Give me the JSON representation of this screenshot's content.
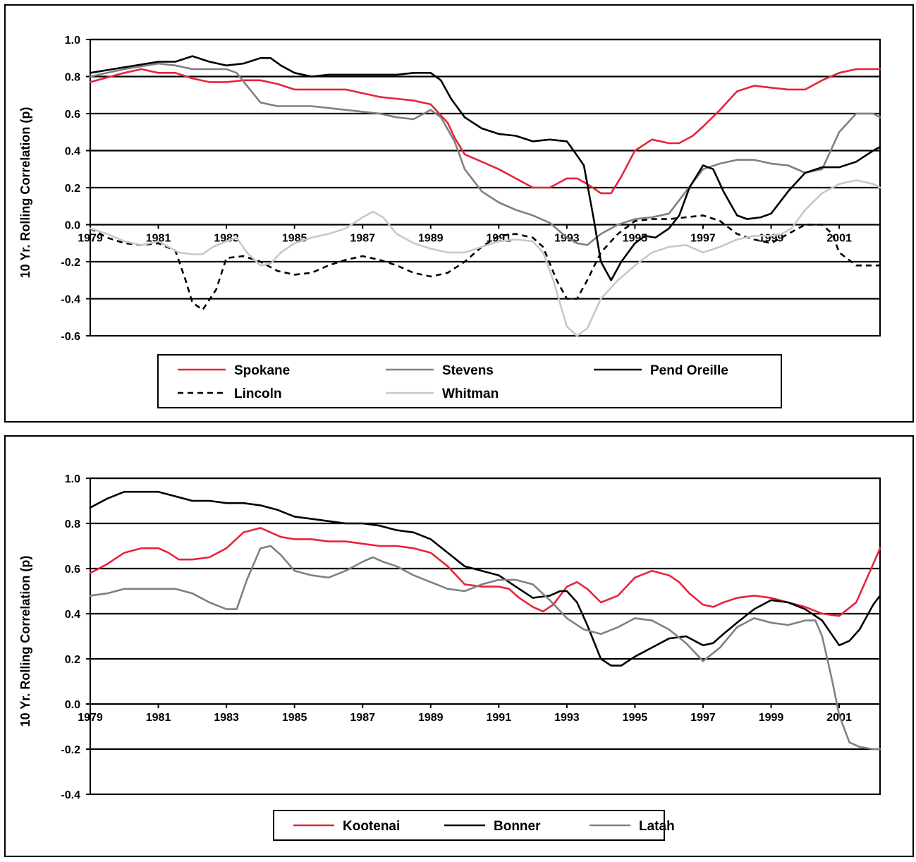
{
  "chart_data": [
    {
      "type": "line",
      "ylabel": "10 Yr. Rolling Correlation (p)",
      "xlabel": "",
      "ylim": [
        -0.6,
        1.0
      ],
      "xlim": [
        1979,
        2002.2
      ],
      "yticks": [
        -0.6,
        -0.4,
        -0.2,
        0.0,
        0.2,
        0.4,
        0.6,
        0.8,
        1.0
      ],
      "yticklabels": [
        "-0.6",
        "-0.4",
        "-0.2",
        "0.0",
        "0.2",
        "0.4",
        "0.6",
        "0.8",
        "1.0"
      ],
      "xticks": [
        1979,
        1981,
        1983,
        1985,
        1987,
        1989,
        1991,
        1993,
        1995,
        1997,
        1999,
        2001
      ],
      "xticklabels": [
        "1979",
        "1981",
        "1983",
        "1985",
        "1987",
        "1989",
        "1991",
        "1993",
        "1995",
        "1997",
        "1999",
        "2001"
      ],
      "grid": "horizontal",
      "legend": "bottom",
      "legend_columns": 3,
      "series": [
        {
          "name": "Spokane",
          "color": "#e8233a",
          "dash": "solid",
          "x": [
            1979,
            1980,
            1980.5,
            1981,
            1981.5,
            1982,
            1982.5,
            1983,
            1983.5,
            1984,
            1984.5,
            1985,
            1985.5,
            1986,
            1986.5,
            1987,
            1987.5,
            1988,
            1988.5,
            1989,
            1989.5,
            1989.7,
            1990,
            1990.5,
            1991,
            1991.5,
            1992,
            1992.5,
            1993,
            1993.3,
            1993.6,
            1994,
            1994.3,
            1994.6,
            1995,
            1995.5,
            1996,
            1996.3,
            1996.7,
            1997,
            1997.5,
            1998,
            1998.5,
            1999,
            1999.5,
            2000,
            2000.5,
            2001,
            2001.5,
            2002,
            2002.2
          ],
          "y": [
            0.77,
            0.82,
            0.84,
            0.82,
            0.82,
            0.79,
            0.77,
            0.77,
            0.78,
            0.78,
            0.76,
            0.73,
            0.73,
            0.73,
            0.73,
            0.71,
            0.69,
            0.68,
            0.67,
            0.65,
            0.55,
            0.47,
            0.38,
            0.34,
            0.3,
            0.25,
            0.2,
            0.2,
            0.25,
            0.25,
            0.22,
            0.17,
            0.17,
            0.26,
            0.4,
            0.46,
            0.44,
            0.44,
            0.48,
            0.53,
            0.62,
            0.72,
            0.75,
            0.74,
            0.73,
            0.73,
            0.78,
            0.82,
            0.84,
            0.84,
            0.84
          ]
        },
        {
          "name": "Stevens",
          "color": "#808080",
          "dash": "solid",
          "x": [
            1979,
            1980,
            1981,
            1981.5,
            1982,
            1982.5,
            1983,
            1983.3,
            1983.6,
            1984,
            1984.5,
            1985,
            1985.5,
            1986,
            1986.5,
            1987,
            1987.5,
            1988,
            1988.5,
            1989,
            1989.3,
            1989.7,
            1990,
            1990.5,
            1991,
            1991.5,
            1992,
            1992.5,
            1993,
            1993.3,
            1993.6,
            1994,
            1994.5,
            1995,
            1995.5,
            1996,
            1996.5,
            1997,
            1997.5,
            1998,
            1998.5,
            1999,
            1999.5,
            2000,
            2000.5,
            2001,
            2001.5,
            2002,
            2002.2
          ],
          "y": [
            0.8,
            0.84,
            0.87,
            0.86,
            0.84,
            0.84,
            0.84,
            0.82,
            0.75,
            0.66,
            0.64,
            0.64,
            0.64,
            0.63,
            0.62,
            0.61,
            0.6,
            0.58,
            0.57,
            0.62,
            0.58,
            0.45,
            0.3,
            0.18,
            0.12,
            0.08,
            0.05,
            0.01,
            -0.07,
            -0.1,
            -0.11,
            -0.05,
            0.0,
            0.03,
            0.04,
            0.06,
            0.18,
            0.3,
            0.33,
            0.35,
            0.35,
            0.33,
            0.32,
            0.28,
            0.3,
            0.5,
            0.6,
            0.6,
            0.58
          ]
        },
        {
          "name": "Pend Oreille",
          "color": "#000000",
          "dash": "solid",
          "x": [
            1979,
            1980,
            1981,
            1981.5,
            1982,
            1982.5,
            1983,
            1983.5,
            1984,
            1984.3,
            1984.6,
            1985,
            1985.5,
            1986,
            1986.5,
            1987,
            1987.5,
            1988,
            1988.5,
            1989,
            1989.3,
            1989.6,
            1990,
            1990.5,
            1991,
            1991.5,
            1992,
            1992.5,
            1993,
            1993.2,
            1993.5,
            1993.8,
            1994,
            1994.3,
            1994.6,
            1995,
            1995.3,
            1995.6,
            1996,
            1996.3,
            1996.6,
            1997,
            1997.3,
            1997.6,
            1998,
            1998.3,
            1998.7,
            1999,
            1999.5,
            2000,
            2000.5,
            2001,
            2001.5,
            2002,
            2002.2
          ],
          "y": [
            0.82,
            0.85,
            0.88,
            0.88,
            0.91,
            0.88,
            0.86,
            0.87,
            0.9,
            0.9,
            0.86,
            0.82,
            0.8,
            0.81,
            0.81,
            0.81,
            0.81,
            0.81,
            0.82,
            0.82,
            0.78,
            0.68,
            0.58,
            0.52,
            0.49,
            0.48,
            0.45,
            0.46,
            0.45,
            0.4,
            0.32,
            0.02,
            -0.2,
            -0.3,
            -0.2,
            -0.1,
            -0.06,
            -0.07,
            -0.02,
            0.05,
            0.2,
            0.32,
            0.3,
            0.18,
            0.05,
            0.03,
            0.04,
            0.06,
            0.18,
            0.28,
            0.31,
            0.31,
            0.34,
            0.4,
            0.42
          ]
        },
        {
          "name": "Lincoln",
          "color": "#000000",
          "dash": "dashed",
          "x": [
            1979,
            1979.5,
            1980,
            1980.5,
            1981,
            1981.5,
            1981.8,
            1982,
            1982.3,
            1982.7,
            1983,
            1983.5,
            1984,
            1984.5,
            1985,
            1985.5,
            1986,
            1986.5,
            1987,
            1987.5,
            1988,
            1988.5,
            1989,
            1989.5,
            1990,
            1990.5,
            1991,
            1991.5,
            1992,
            1992.3,
            1992.7,
            1993,
            1993.3,
            1993.6,
            1994,
            1994.5,
            1995,
            1995.5,
            1996,
            1996.5,
            1997,
            1997.5,
            1998,
            1998.5,
            1999,
            1999.5,
            2000,
            2000.5,
            2000.8,
            2001,
            2001.5,
            2002,
            2002.2
          ],
          "y": [
            -0.02,
            -0.07,
            -0.1,
            -0.11,
            -0.1,
            -0.14,
            -0.3,
            -0.42,
            -0.46,
            -0.35,
            -0.18,
            -0.17,
            -0.2,
            -0.25,
            -0.27,
            -0.26,
            -0.22,
            -0.19,
            -0.17,
            -0.19,
            -0.22,
            -0.26,
            -0.28,
            -0.26,
            -0.2,
            -0.12,
            -0.06,
            -0.05,
            -0.07,
            -0.12,
            -0.3,
            -0.4,
            -0.4,
            -0.3,
            -0.15,
            -0.05,
            0.02,
            0.03,
            0.03,
            0.04,
            0.05,
            0.02,
            -0.05,
            -0.08,
            -0.1,
            -0.05,
            0.0,
            0.0,
            -0.05,
            -0.15,
            -0.22,
            -0.22,
            -0.22
          ]
        },
        {
          "name": "Whitman",
          "color": "#c8c8c8",
          "dash": "solid",
          "x": [
            1979,
            1979.5,
            1980,
            1980.5,
            1981,
            1981.3,
            1981.6,
            1982,
            1982.3,
            1982.6,
            1983,
            1983.3,
            1983.6,
            1984,
            1984.3,
            1984.6,
            1985,
            1985.5,
            1986,
            1986.5,
            1987,
            1987.3,
            1987.6,
            1988,
            1988.5,
            1989,
            1989.5,
            1990,
            1990.5,
            1991,
            1991.5,
            1992,
            1992.3,
            1992.6,
            1993,
            1993.3,
            1993.6,
            1994,
            1994.5,
            1995,
            1995.5,
            1996,
            1996.5,
            1997,
            1997.5,
            1998,
            1998.5,
            1999,
            1999.3,
            1999.6,
            2000,
            2000.5,
            2001,
            2001.5,
            2002,
            2002.2
          ],
          "y": [
            -0.02,
            -0.05,
            -0.09,
            -0.11,
            -0.09,
            -0.12,
            -0.15,
            -0.16,
            -0.16,
            -0.12,
            -0.09,
            -0.07,
            -0.15,
            -0.22,
            -0.21,
            -0.15,
            -0.1,
            -0.07,
            -0.05,
            -0.02,
            0.04,
            0.07,
            0.04,
            -0.05,
            -0.1,
            -0.13,
            -0.15,
            -0.15,
            -0.12,
            -0.09,
            -0.08,
            -0.09,
            -0.15,
            -0.3,
            -0.55,
            -0.6,
            -0.56,
            -0.4,
            -0.3,
            -0.22,
            -0.15,
            -0.12,
            -0.11,
            -0.15,
            -0.12,
            -0.08,
            -0.06,
            -0.06,
            -0.05,
            -0.02,
            0.08,
            0.17,
            0.22,
            0.24,
            0.22,
            0.2
          ]
        }
      ],
      "legend_labels": [
        "Spokane",
        "Stevens",
        "Pend Oreille",
        "Lincoln",
        "Whitman"
      ]
    },
    {
      "type": "line",
      "ylabel": "10 Yr. Rolling Correlation (p)",
      "xlabel": "",
      "ylim": [
        -0.4,
        1.0
      ],
      "xlim": [
        1979,
        2002.2
      ],
      "yticks": [
        -0.4,
        -0.2,
        0.0,
        0.2,
        0.4,
        0.6,
        0.8,
        1.0
      ],
      "yticklabels": [
        "-0.4",
        "-0.2",
        "0.0",
        "0.2",
        "0.4",
        "0.6",
        "0.8",
        "1.0"
      ],
      "xticks": [
        1979,
        1981,
        1983,
        1985,
        1987,
        1989,
        1991,
        1993,
        1995,
        1997,
        1999,
        2001
      ],
      "xticklabels": [
        "1979",
        "1981",
        "1983",
        "1985",
        "1987",
        "1989",
        "1991",
        "1993",
        "1995",
        "1997",
        "1999",
        "2001"
      ],
      "grid": "horizontal",
      "legend": "bottom",
      "legend_columns": 3,
      "series": [
        {
          "name": "Kootenai",
          "color": "#e8233a",
          "dash": "solid",
          "x": [
            1979,
            1979.5,
            1980,
            1980.5,
            1981,
            1981.3,
            1981.6,
            1982,
            1982.5,
            1983,
            1983.5,
            1984,
            1984.3,
            1984.6,
            1985,
            1985.5,
            1986,
            1986.5,
            1987,
            1987.5,
            1988,
            1988.5,
            1989,
            1989.5,
            1990,
            1990.5,
            1991,
            1991.3,
            1991.6,
            1992,
            1992.3,
            1992.6,
            1993,
            1993.3,
            1993.6,
            1994,
            1994.5,
            1995,
            1995.5,
            1996,
            1996.3,
            1996.6,
            1997,
            1997.3,
            1997.6,
            1998,
            1998.5,
            1999,
            1999.5,
            2000,
            2000.5,
            2001,
            2001.5,
            2002,
            2002.2
          ],
          "y": [
            0.58,
            0.62,
            0.67,
            0.69,
            0.69,
            0.67,
            0.64,
            0.64,
            0.65,
            0.69,
            0.76,
            0.78,
            0.76,
            0.74,
            0.73,
            0.73,
            0.72,
            0.72,
            0.71,
            0.7,
            0.7,
            0.69,
            0.67,
            0.61,
            0.53,
            0.52,
            0.52,
            0.51,
            0.47,
            0.43,
            0.41,
            0.44,
            0.52,
            0.54,
            0.51,
            0.45,
            0.48,
            0.56,
            0.59,
            0.57,
            0.54,
            0.49,
            0.44,
            0.43,
            0.45,
            0.47,
            0.48,
            0.47,
            0.45,
            0.43,
            0.4,
            0.39,
            0.45,
            0.62,
            0.69
          ]
        },
        {
          "name": "Bonner",
          "color": "#000000",
          "dash": "solid",
          "x": [
            1979,
            1979.5,
            1980,
            1980.5,
            1981,
            1981.5,
            1982,
            1982.5,
            1983,
            1983.5,
            1984,
            1984.5,
            1985,
            1985.5,
            1986,
            1986.5,
            1987,
            1987.5,
            1988,
            1988.5,
            1989,
            1989.5,
            1990,
            1990.5,
            1991,
            1991.5,
            1992,
            1992.5,
            1992.8,
            1993,
            1993.3,
            1993.6,
            1994,
            1994.3,
            1994.6,
            1995,
            1995.5,
            1996,
            1996.5,
            1997,
            1997.3,
            1997.6,
            1998,
            1998.5,
            1999,
            1999.5,
            2000,
            2000.5,
            2001,
            2001.3,
            2001.6,
            2002,
            2002.2
          ],
          "y": [
            0.87,
            0.91,
            0.94,
            0.94,
            0.94,
            0.92,
            0.9,
            0.9,
            0.89,
            0.89,
            0.88,
            0.86,
            0.83,
            0.82,
            0.81,
            0.8,
            0.8,
            0.79,
            0.77,
            0.76,
            0.73,
            0.67,
            0.61,
            0.59,
            0.57,
            0.52,
            0.47,
            0.48,
            0.5,
            0.5,
            0.45,
            0.35,
            0.2,
            0.17,
            0.17,
            0.21,
            0.25,
            0.29,
            0.3,
            0.26,
            0.27,
            0.31,
            0.36,
            0.42,
            0.46,
            0.45,
            0.42,
            0.37,
            0.26,
            0.28,
            0.33,
            0.44,
            0.48
          ]
        },
        {
          "name": "Latah",
          "color": "#808080",
          "dash": "solid",
          "x": [
            1979,
            1979.5,
            1980,
            1980.5,
            1981,
            1981.5,
            1982,
            1982.5,
            1983,
            1983.3,
            1983.6,
            1984,
            1984.3,
            1984.6,
            1985,
            1985.5,
            1986,
            1986.5,
            1987,
            1987.3,
            1987.6,
            1988,
            1988.5,
            1989,
            1989.5,
            1990,
            1990.5,
            1991,
            1991.5,
            1992,
            1992.5,
            1993,
            1993.5,
            1994,
            1994.5,
            1995,
            1995.5,
            1996,
            1996.5,
            1997,
            1997.5,
            1998,
            1998.5,
            1999,
            1999.5,
            2000,
            2000.3,
            2000.5,
            2000.8,
            2001,
            2001.3,
            2001.6,
            2002,
            2002.2
          ],
          "y": [
            0.48,
            0.49,
            0.51,
            0.51,
            0.51,
            0.51,
            0.49,
            0.45,
            0.42,
            0.42,
            0.55,
            0.69,
            0.7,
            0.66,
            0.59,
            0.57,
            0.56,
            0.59,
            0.63,
            0.65,
            0.63,
            0.61,
            0.57,
            0.54,
            0.51,
            0.5,
            0.53,
            0.55,
            0.55,
            0.53,
            0.46,
            0.38,
            0.33,
            0.31,
            0.34,
            0.38,
            0.37,
            0.33,
            0.27,
            0.19,
            0.25,
            0.34,
            0.38,
            0.36,
            0.35,
            0.37,
            0.37,
            0.3,
            0.1,
            -0.05,
            -0.17,
            -0.19,
            -0.2,
            -0.2
          ]
        }
      ],
      "legend_labels": [
        "Kootenai",
        "Bonner",
        "Latah"
      ]
    }
  ]
}
